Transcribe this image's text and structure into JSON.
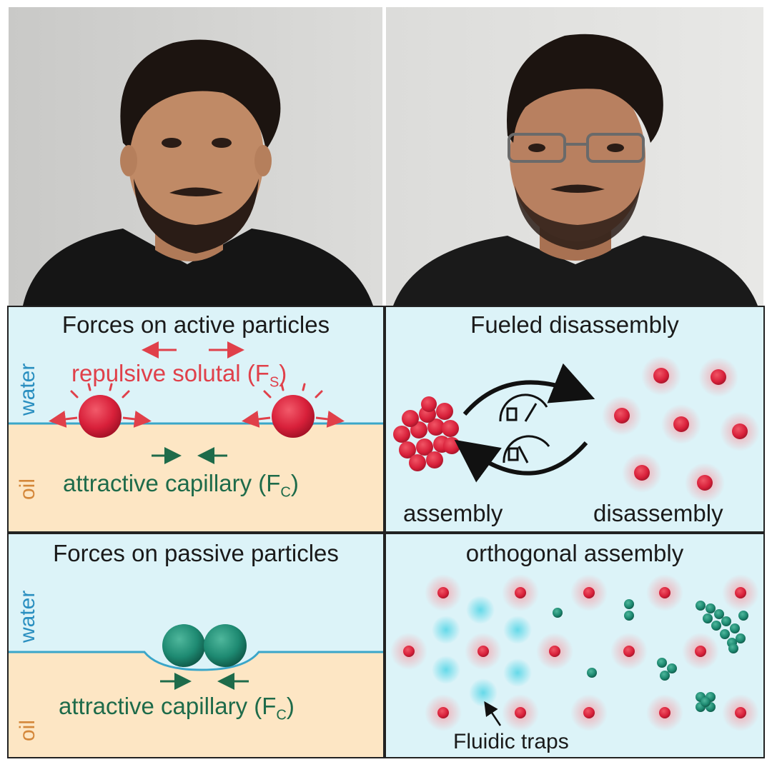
{
  "photos": {
    "left": {
      "description": "portrait-left"
    },
    "right": {
      "description": "portrait-right"
    }
  },
  "panels": {
    "active": {
      "title": "Forces on active particles",
      "solutal_label": "repulsive solutal (F",
      "solutal_sub": "S",
      "capillary_label": "attractive capillary (F",
      "capillary_sub": "C",
      "water_label": "water",
      "oil_label": "oil"
    },
    "passive": {
      "title": "Forces on passive particles",
      "capillary_label": "attractive capillary (F",
      "capillary_sub": "C",
      "water_label": "water",
      "oil_label": "oil"
    },
    "fueled": {
      "title": "Fueled disassembly",
      "assembly_label": "assembly",
      "disassembly_label": "disassembly"
    },
    "orthogonal": {
      "title": "orthogonal assembly",
      "traps_label": "Fluidic traps"
    }
  },
  "colors": {
    "water": "#dcf3f8",
    "oil": "#fde6c4",
    "interface": "#3aa6c9",
    "red_text": "#e0404a",
    "green_text": "#1e6b4a",
    "water_text": "#2a8fc0",
    "oil_text": "#d4873a",
    "red_particle": "#d8203a",
    "teal_particle": "#1e8a72",
    "trap": "#5fd8e8"
  }
}
